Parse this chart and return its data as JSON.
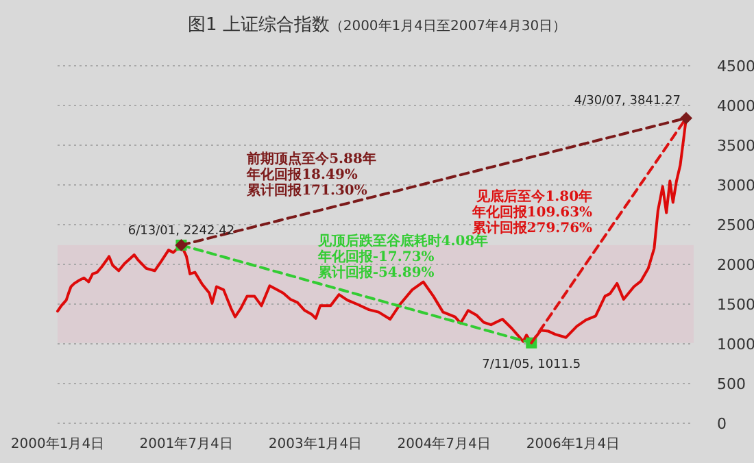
{
  "chart_data": {
    "type": "line",
    "title": "图1  上证综合指数",
    "subtitle": "（2000年1月4日至2007年4月30日）",
    "xlim": [
      "2000-01-04",
      "2007-06-01"
    ],
    "xticks": [
      {
        "value": "2000-01-04",
        "label": "2000年1月4日"
      },
      {
        "value": "2001-07-04",
        "label": "2001年7月4日"
      },
      {
        "value": "2003-01-04",
        "label": "2003年1月4日"
      },
      {
        "value": "2004-07-04",
        "label": "2004年7月4日"
      },
      {
        "value": "2006-01-04",
        "label": "2006年1月4日"
      }
    ],
    "ylim": [
      0,
      4500
    ],
    "yticks": [
      0,
      500,
      1000,
      1500,
      2000,
      2500,
      3000,
      3500,
      4000,
      4500
    ],
    "grid": "y",
    "bands": [
      {
        "axis": "y",
        "from": 1011.5,
        "to": 2242.42,
        "color": "#dccdd2"
      }
    ],
    "series": [
      {
        "color": "#dd0a0a",
        "marker": "none",
        "line_style": "solid",
        "x": [
          "2000-01-04",
          "2000-01-20",
          "2000-02-10",
          "2000-02-20",
          "2000-03-01",
          "2000-03-15",
          "2000-04-05",
          "2000-04-25",
          "2000-05-15",
          "2000-06-01",
          "2000-06-20",
          "2000-07-10",
          "2000-08-01",
          "2000-08-10",
          "2000-08-25",
          "2000-09-20",
          "2000-10-15",
          "2000-11-10",
          "2000-11-25",
          "2000-12-10",
          "2001-01-15",
          "2001-02-20",
          "2001-03-20",
          "2001-04-20",
          "2001-05-10",
          "2001-06-13",
          "2001-07-05",
          "2001-07-20",
          "2001-08-10",
          "2001-09-10",
          "2001-10-10",
          "2001-10-22",
          "2001-11-10",
          "2001-12-10",
          "2002-01-10",
          "2002-01-28",
          "2002-02-20",
          "2002-03-20",
          "2002-04-20",
          "2002-05-20",
          "2002-06-24",
          "2002-07-20",
          "2002-08-20",
          "2002-09-20",
          "2002-10-20",
          "2002-11-20",
          "2002-12-20",
          "2003-01-06",
          "2003-01-25",
          "2003-03-10",
          "2003-04-15",
          "2003-05-20",
          "2003-06-30",
          "2003-08-20",
          "2003-09-30",
          "2003-11-18",
          "2003-12-31",
          "2004-02-20",
          "2004-04-07",
          "2004-05-20",
          "2004-06-30",
          "2004-08-20",
          "2004-09-13",
          "2004-10-15",
          "2004-11-20",
          "2004-12-20",
          "2005-01-20",
          "2005-03-10",
          "2005-04-20",
          "2005-06-06",
          "2005-06-20",
          "2005-07-11",
          "2005-08-20",
          "2005-09-20",
          "2005-10-20",
          "2005-12-05",
          "2006-01-20",
          "2006-02-28",
          "2006-04-10",
          "2006-05-20",
          "2006-06-10",
          "2006-07-10",
          "2006-08-07",
          "2006-09-20",
          "2006-10-20",
          "2006-11-20",
          "2006-12-15",
          "2006-12-31",
          "2007-01-20",
          "2007-02-05",
          "2007-02-20",
          "2007-03-05",
          "2007-03-20",
          "2007-04-05",
          "2007-04-20",
          "2007-04-30"
        ],
        "values": [
          1410,
          1480,
          1550,
          1640,
          1720,
          1760,
          1800,
          1830,
          1780,
          1880,
          1900,
          1970,
          2060,
          2100,
          1990,
          1920,
          2010,
          2080,
          2120,
          2060,
          1950,
          1920,
          2040,
          2180,
          2150,
          2242.42,
          2100,
          1880,
          1900,
          1750,
          1640,
          1510,
          1720,
          1680,
          1450,
          1340,
          1440,
          1600,
          1600,
          1480,
          1730,
          1690,
          1640,
          1560,
          1520,
          1420,
          1370,
          1320,
          1480,
          1480,
          1620,
          1550,
          1500,
          1430,
          1400,
          1310,
          1500,
          1680,
          1780,
          1600,
          1400,
          1340,
          1260,
          1420,
          1360,
          1270,
          1240,
          1310,
          1190,
          1030,
          1110,
          1011.5,
          1170,
          1160,
          1120,
          1080,
          1220,
          1300,
          1350,
          1600,
          1630,
          1760,
          1560,
          1720,
          1790,
          1950,
          2200,
          2675,
          2980,
          2650,
          3050,
          2780,
          3050,
          3250,
          3600,
          3841.27
        ]
      },
      {
        "name": "见顶后跌至谷底耗时4.08年年化回报-17.73%累计回报-54.89%",
        "color": "#33cc33",
        "marker": "square",
        "line_style": "dashed",
        "x": [
          "2001-06-13",
          "2005-07-11"
        ],
        "values": [
          2242.42,
          1011.5
        ]
      },
      {
        "name": "见底后至今1.80年年化回报109.63%累计回报279.76%",
        "color": "#dd1111",
        "marker": "none",
        "line_style": "dashed",
        "x": [
          "2005-07-11",
          "2007-04-30"
        ],
        "values": [
          1011.5,
          3841.27
        ]
      },
      {
        "name": "前期顶点至今5.88年年化回报18.49%累计回报171.30%",
        "color": "#7b1a1a",
        "marker": "diamond",
        "line_style": "dashed",
        "x": [
          "2001-06-13",
          "2007-04-30"
        ],
        "values": [
          2242.42,
          3841.27
        ]
      }
    ],
    "annotations": [
      {
        "text": "6/13/01, 2242.42",
        "x": "2001-06-13",
        "y": 2242.42
      },
      {
        "text": "7/11/05, 1011.5",
        "x": "2005-07-11",
        "y": 1011.5
      },
      {
        "text": "4/30/07, 3841.27",
        "x": "2007-04-30",
        "y": 3841.27
      }
    ]
  }
}
